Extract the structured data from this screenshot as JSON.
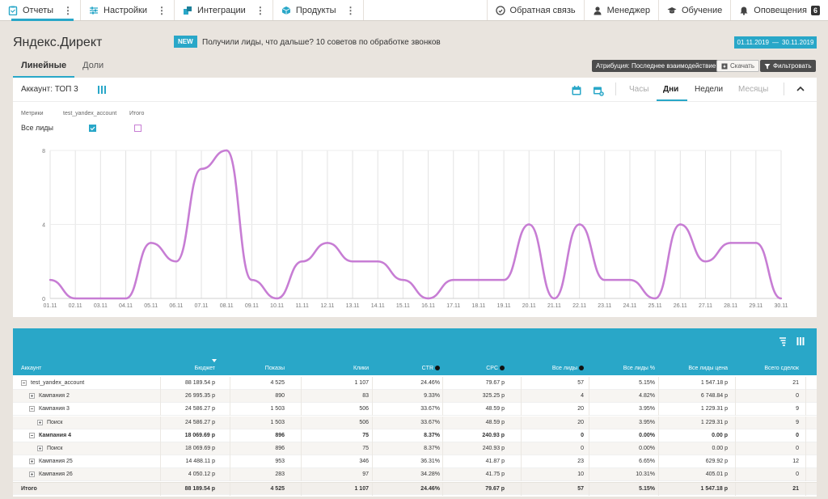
{
  "nav": {
    "items": [
      {
        "label": "Отчеты",
        "icon": "reports-icon"
      },
      {
        "label": "Настройки",
        "icon": "settings-sliders-icon"
      },
      {
        "label": "Интеграции",
        "icon": "integrations-icon"
      },
      {
        "label": "Продукты",
        "icon": "products-icon"
      }
    ],
    "right": [
      {
        "label": "Обратная связь",
        "icon": "feedback-icon"
      },
      {
        "label": "Менеджер",
        "icon": "manager-icon"
      },
      {
        "label": "Обучение",
        "icon": "graduation-cap-icon"
      },
      {
        "label": "Оповещения",
        "icon": "bell-icon"
      }
    ],
    "notif_count": "6"
  },
  "header": {
    "title": "Яндекс.Директ",
    "new_badge": "NEW",
    "new_text": "Получили лиды, что дальше? 10 советов по обработке звонков",
    "date_from": "01.11.2019",
    "date_sep": "—",
    "date_to": "30.11.2019"
  },
  "tabs": [
    "Линейные",
    "Доли"
  ],
  "actions": {
    "attribution": "Атрибуция: Последнее взаимодействие",
    "download": "Скачать",
    "filter": "Фильтровать"
  },
  "chart_card": {
    "account": "Аккаунт: ТОП 3",
    "periods": [
      "Часы",
      "Дни",
      "Недели",
      "Месяцы"
    ],
    "metrics_label": "Метрики",
    "col_account": "test_yandex_account",
    "col_total": "Итого",
    "row_label": "Все лиды"
  },
  "colors": {
    "accent": "#29a7c8",
    "line": "#c77dd4",
    "dark_button": "#4c4c4c"
  },
  "chart_data": {
    "type": "line",
    "x": [
      "01.11",
      "02.11",
      "03.11",
      "04.11",
      "05.11",
      "06.11",
      "07.11",
      "08.11",
      "09.11",
      "10.11",
      "11.11",
      "12.11",
      "13.11",
      "14.11",
      "15.11",
      "16.11",
      "17.11",
      "18.11",
      "19.11",
      "20.11",
      "21.11",
      "22.11",
      "23.11",
      "24.11",
      "25.11",
      "26.11",
      "27.11",
      "28.11",
      "29.11",
      "30.11"
    ],
    "series": [
      {
        "values": [
          1,
          0,
          0,
          0,
          3,
          2,
          7,
          8,
          1,
          0,
          2,
          3,
          2,
          2,
          1,
          0,
          1,
          1,
          1,
          4,
          0,
          4,
          1,
          1,
          0,
          4,
          2,
          3,
          3,
          0
        ]
      }
    ],
    "yticks": [
      0,
      4,
      8
    ],
    "ylim": [
      0,
      8
    ],
    "grid": true,
    "line_color": "#c77dd4"
  },
  "table": {
    "headers": [
      "Аккаунт",
      "Бюджет",
      "Показы",
      "Клики",
      "CTR",
      "CPC",
      "Все лиды",
      "Все лиды %",
      "Все лиды цена",
      "Всего сделок"
    ],
    "rows": [
      {
        "name": "test_yandex_account",
        "cells": [
          "88 189.54 р",
          "4 525",
          "1 107",
          "24.46%",
          "79.67 р",
          "57",
          "5.15%",
          "1 547.18 р",
          "21"
        ]
      },
      {
        "name": "Кампания 2",
        "cells": [
          "26 995.35 р",
          "890",
          "83",
          "9.33%",
          "325.25 р",
          "4",
          "4.82%",
          "6 748.84 р",
          "0"
        ]
      },
      {
        "name": "Кампания 3",
        "cells": [
          "24 586.27 р",
          "1 503",
          "506",
          "33.67%",
          "48.59 р",
          "20",
          "3.95%",
          "1 229.31 р",
          "9"
        ]
      },
      {
        "name": "Поиск",
        "cells": [
          "24 586.27 р",
          "1 503",
          "506",
          "33.67%",
          "48.59 р",
          "20",
          "3.95%",
          "1 229.31 р",
          "9"
        ]
      },
      {
        "name": "Кампания 4",
        "cells": [
          "18 069.69 р",
          "896",
          "75",
          "8.37%",
          "240.93 р",
          "0",
          "0.00%",
          "0.00 р",
          "0"
        ]
      },
      {
        "name": "Поиск",
        "cells": [
          "18 069.69 р",
          "896",
          "75",
          "8.37%",
          "240.93 р",
          "0",
          "0.00%",
          "0.00 р",
          "0"
        ]
      },
      {
        "name": "Кампания 25",
        "cells": [
          "14 488.11 р",
          "953",
          "346",
          "36.31%",
          "41.87 р",
          "23",
          "6.65%",
          "629.92 р",
          "12"
        ]
      },
      {
        "name": "Кампания 26",
        "cells": [
          "4 050.12 р",
          "283",
          "97",
          "34.28%",
          "41.75 р",
          "10",
          "10.31%",
          "405.01 р",
          "0"
        ]
      }
    ],
    "total": {
      "name": "Итого",
      "cells": [
        "88 189.54 р",
        "4 525",
        "1 107",
        "24.46%",
        "79.67 р",
        "57",
        "5.15%",
        "1 547.18 р",
        "21"
      ]
    }
  }
}
